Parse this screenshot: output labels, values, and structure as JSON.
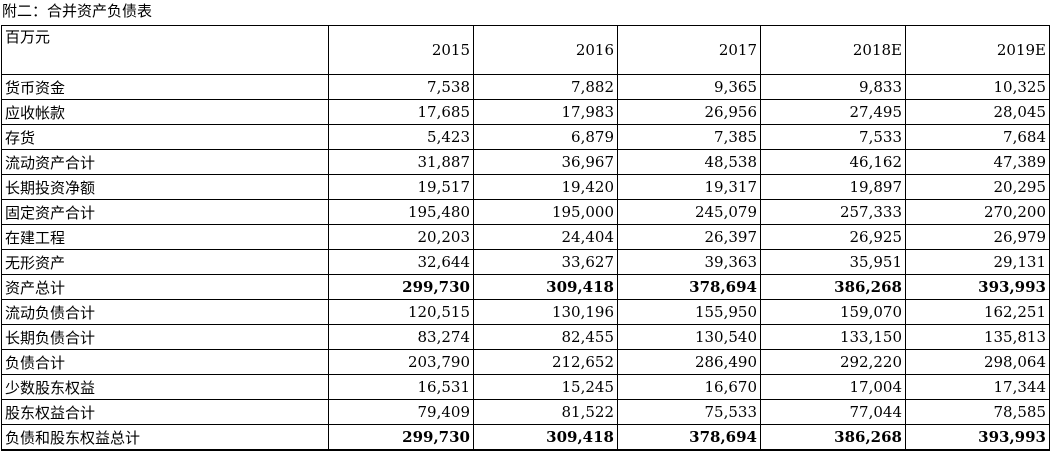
{
  "header": {
    "title": "附二：合并资产负债表"
  },
  "table": {
    "columns": [
      "百万元",
      "2015",
      "2016",
      "2017",
      "2018E",
      "2019E"
    ],
    "rows": [
      [
        "货币资金",
        "7,538",
        "7,882",
        "9,365",
        "9,833",
        "10,325"
      ],
      [
        "应收帐款",
        "17,685",
        "17,983",
        "26,956",
        "27,495",
        "28,045"
      ],
      [
        "存货",
        "5,423",
        "6,879",
        "7,385",
        "7,533",
        "7,684"
      ],
      [
        "流动资产合计",
        "31,887",
        "36,967",
        "48,538",
        "46,162",
        "47,389"
      ],
      [
        "长期投资净额",
        "19,517",
        "19,420",
        "19,317",
        "19,897",
        "20,295"
      ],
      [
        "固定资产合计",
        "195,480",
        "195,000",
        "245,079",
        "257,333",
        "270,200"
      ],
      [
        "在建工程",
        "20,203",
        "24,404",
        "26,397",
        "26,925",
        "26,979"
      ],
      [
        "无形资产",
        "32,644",
        "33,627",
        "39,363",
        "35,951",
        "29,131"
      ],
      [
        "资产总计",
        "299,730",
        "309,418",
        "378,694",
        "386,268",
        "393,993"
      ],
      [
        "流动负债合计",
        "120,515",
        "130,196",
        "155,950",
        "159,070",
        "162,251"
      ],
      [
        "长期负债合计",
        "83,274",
        "82,455",
        "130,540",
        "133,150",
        "135,813"
      ],
      [
        "负债合计",
        "203,790",
        "212,652",
        "286,490",
        "292,220",
        "298,064"
      ],
      [
        "少数股东权益",
        "16,531",
        "15,245",
        "16,670",
        "17,004",
        "17,344"
      ],
      [
        "股东权益合计",
        "79,409",
        "81,522",
        "75,533",
        "77,044",
        "78,585"
      ],
      [
        "负债和股东权益总计",
        "299,730",
        "309,418",
        "378,694",
        "386,268",
        "393,993"
      ]
    ],
    "bold_rows": [
      8,
      14
    ]
  }
}
